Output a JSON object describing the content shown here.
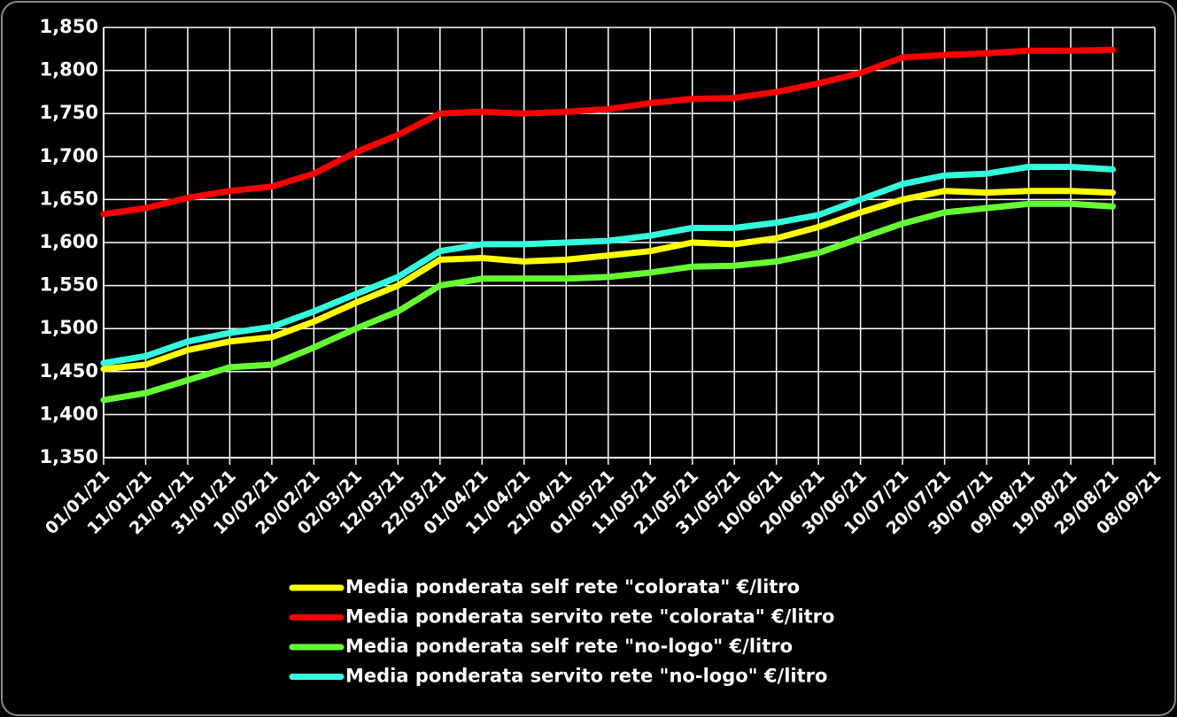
{
  "chart_data": {
    "type": "line",
    "x": [
      "2021-01-01",
      "2021-01-11",
      "2021-01-21",
      "2021-01-31",
      "2021-02-10",
      "2021-02-20",
      "2021-03-02",
      "2021-03-12",
      "2021-03-22",
      "2021-04-01",
      "2021-04-11",
      "2021-04-21",
      "2021-05-01",
      "2021-05-11",
      "2021-05-21",
      "2021-05-31",
      "2021-06-10",
      "2021-06-20",
      "2021-06-30",
      "2021-07-10",
      "2021-07-20",
      "2021-07-30",
      "2021-08-09",
      "2021-08-19",
      "2021-08-29"
    ],
    "series": [
      {
        "name": "Media ponderata self rete \"colorata\" €/litro",
        "color": "#ffff00",
        "values": [
          1.453,
          1.458,
          1.475,
          1.485,
          1.49,
          1.508,
          1.53,
          1.55,
          1.58,
          1.582,
          1.578,
          1.58,
          1.585,
          1.59,
          1.6,
          1.598,
          1.605,
          1.618,
          1.635,
          1.65,
          1.66,
          1.658,
          1.66,
          1.66,
          1.658
        ]
      },
      {
        "name": "Media ponderata servito rete \"colorata\" €/litro",
        "color": "#ff0000",
        "values": [
          1.633,
          1.64,
          1.652,
          1.66,
          1.665,
          1.68,
          1.705,
          1.725,
          1.75,
          1.752,
          1.75,
          1.752,
          1.755,
          1.762,
          1.767,
          1.768,
          1.775,
          1.785,
          1.797,
          1.815,
          1.818,
          1.82,
          1.823,
          1.823,
          1.824
        ]
      },
      {
        "name": "Media ponderata self rete \"no-logo\" €/litro",
        "color": "#66ff33",
        "values": [
          1.417,
          1.425,
          1.44,
          1.455,
          1.458,
          1.478,
          1.5,
          1.52,
          1.55,
          1.558,
          1.558,
          1.558,
          1.56,
          1.565,
          1.572,
          1.573,
          1.578,
          1.588,
          1.605,
          1.622,
          1.635,
          1.64,
          1.645,
          1.645,
          1.642
        ]
      },
      {
        "name": "Media ponderata servito rete \"no-logo\" €/litro",
        "color": "#33ffdd",
        "values": [
          1.46,
          1.468,
          1.485,
          1.495,
          1.502,
          1.52,
          1.54,
          1.56,
          1.59,
          1.598,
          1.598,
          1.6,
          1.602,
          1.608,
          1.617,
          1.617,
          1.623,
          1.632,
          1.65,
          1.668,
          1.678,
          1.68,
          1.688,
          1.688,
          1.685
        ]
      }
    ],
    "xlim": [
      "2021-01-01",
      "2021-09-08"
    ],
    "xticks": [
      {
        "value": "2021-01-01",
        "label": "01/01/21"
      },
      {
        "value": "2021-01-11",
        "label": "11/01/21"
      },
      {
        "value": "2021-01-21",
        "label": "21/01/21"
      },
      {
        "value": "2021-01-31",
        "label": "31/01/21"
      },
      {
        "value": "2021-02-10",
        "label": "10/02/21"
      },
      {
        "value": "2021-02-20",
        "label": "20/02/21"
      },
      {
        "value": "2021-03-02",
        "label": "02/03/21"
      },
      {
        "value": "2021-03-12",
        "label": "12/03/21"
      },
      {
        "value": "2021-03-22",
        "label": "22/03/21"
      },
      {
        "value": "2021-04-01",
        "label": "01/04/21"
      },
      {
        "value": "2021-04-11",
        "label": "11/04/21"
      },
      {
        "value": "2021-04-21",
        "label": "21/04/21"
      },
      {
        "value": "2021-05-01",
        "label": "01/05/21"
      },
      {
        "value": "2021-05-11",
        "label": "11/05/21"
      },
      {
        "value": "2021-05-21",
        "label": "21/05/21"
      },
      {
        "value": "2021-05-31",
        "label": "31/05/21"
      },
      {
        "value": "2021-06-10",
        "label": "10/06/21"
      },
      {
        "value": "2021-06-20",
        "label": "20/06/21"
      },
      {
        "value": "2021-06-30",
        "label": "30/06/21"
      },
      {
        "value": "2021-07-10",
        "label": "10/07/21"
      },
      {
        "value": "2021-07-20",
        "label": "20/07/21"
      },
      {
        "value": "2021-07-30",
        "label": "30/07/21"
      },
      {
        "value": "2021-08-09",
        "label": "09/08/21"
      },
      {
        "value": "2021-08-19",
        "label": "19/08/21"
      },
      {
        "value": "2021-08-29",
        "label": "29/08/21"
      },
      {
        "value": "2021-09-08",
        "label": "08/09/21"
      }
    ],
    "ylim": [
      1.35,
      1.85
    ],
    "yticks": [
      {
        "value": 1.35,
        "label": "1,350"
      },
      {
        "value": 1.4,
        "label": "1,400"
      },
      {
        "value": 1.45,
        "label": "1,450"
      },
      {
        "value": 1.5,
        "label": "1,500"
      },
      {
        "value": 1.55,
        "label": "1,550"
      },
      {
        "value": 1.6,
        "label": "1,600"
      },
      {
        "value": 1.65,
        "label": "1,650"
      },
      {
        "value": 1.7,
        "label": "1,700"
      },
      {
        "value": 1.75,
        "label": "1,750"
      },
      {
        "value": 1.8,
        "label": "1,800"
      },
      {
        "value": 1.85,
        "label": "1,850"
      }
    ],
    "grid": true,
    "legend": "bottom"
  }
}
